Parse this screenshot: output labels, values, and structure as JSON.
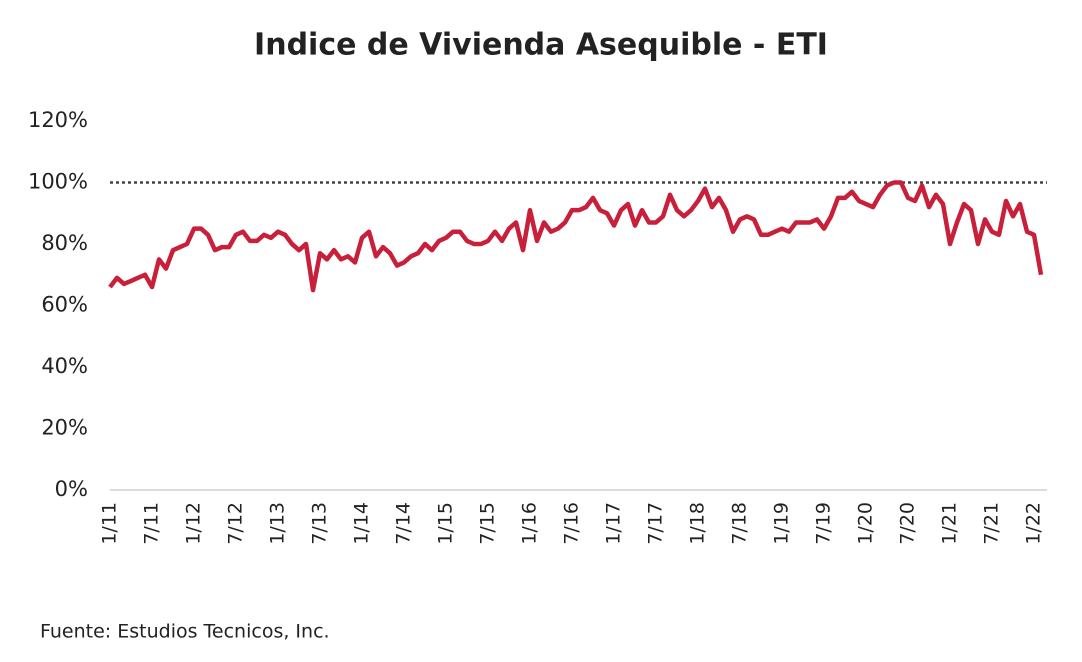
{
  "chart_data": {
    "type": "line",
    "title": "Indice de Vivienda Asequible - ETI",
    "source": "Fuente: Estudios Tecnicos, Inc.",
    "categories": [
      "1/11",
      null,
      null,
      null,
      null,
      null,
      "7/11",
      null,
      null,
      null,
      null,
      null,
      "1/12",
      null,
      null,
      null,
      null,
      null,
      "7/12",
      null,
      null,
      null,
      null,
      null,
      "1/13",
      null,
      null,
      null,
      null,
      null,
      "7/13",
      null,
      null,
      null,
      null,
      null,
      "1/14",
      null,
      null,
      null,
      null,
      null,
      "7/14",
      null,
      null,
      null,
      null,
      null,
      "1/15",
      null,
      null,
      null,
      null,
      null,
      "7/15",
      null,
      null,
      null,
      null,
      null,
      "1/16",
      null,
      null,
      null,
      null,
      null,
      "7/16",
      null,
      null,
      null,
      null,
      null,
      "1/17",
      null,
      null,
      null,
      null,
      null,
      "7/17",
      null,
      null,
      null,
      null,
      null,
      "1/18",
      null,
      null,
      null,
      null,
      null,
      "7/18",
      null,
      null,
      null,
      null,
      null,
      "1/19",
      null,
      null,
      null,
      null,
      null,
      "7/19",
      null,
      null,
      null,
      null,
      null,
      "1/20",
      null,
      null,
      null,
      null,
      null,
      "7/20",
      null,
      null,
      null,
      null,
      null,
      "1/21",
      null,
      null,
      null,
      null,
      null,
      "7/21",
      null,
      null,
      null,
      null,
      null,
      "1/22",
      null
    ],
    "series": [
      {
        "name": "ETI",
        "color": "#c8203a",
        "values": [
          66,
          69,
          67,
          68,
          69,
          70,
          66,
          75,
          72,
          78,
          79,
          80,
          85,
          85,
          83,
          78,
          79,
          79,
          83,
          84,
          81,
          81,
          83,
          82,
          84,
          83,
          80,
          78,
          80,
          65,
          77,
          75,
          78,
          75,
          76,
          74,
          82,
          84,
          76,
          79,
          77,
          73,
          74,
          76,
          77,
          80,
          78,
          81,
          82,
          84,
          84,
          81,
          80,
          80,
          81,
          84,
          81,
          85,
          87,
          78,
          91,
          81,
          87,
          84,
          85,
          87,
          91,
          91,
          92,
          95,
          91,
          90,
          86,
          91,
          93,
          86,
          91,
          87,
          87,
          89,
          96,
          91,
          89,
          91,
          94,
          98,
          92,
          95,
          91,
          84,
          88,
          89,
          88,
          83,
          83,
          84,
          85,
          84,
          87,
          87,
          87,
          88,
          85,
          89,
          95,
          95,
          97,
          94,
          93,
          92,
          96,
          99,
          100,
          100,
          95,
          94,
          99,
          92,
          96,
          93,
          80,
          87,
          93,
          91,
          80,
          88,
          84,
          83,
          94,
          89,
          93,
          84,
          83,
          70
        ]
      }
    ],
    "ylim": [
      0,
      120
    ],
    "yticks": [
      {
        "value": 0,
        "label": "0%"
      },
      {
        "value": 20,
        "label": "20%"
      },
      {
        "value": 40,
        "label": "40%"
      },
      {
        "value": 60,
        "label": "60%"
      },
      {
        "value": 80,
        "label": "80%"
      },
      {
        "value": 100,
        "label": "100%"
      },
      {
        "value": 120,
        "label": "120%"
      }
    ],
    "reference_line": 100
  }
}
